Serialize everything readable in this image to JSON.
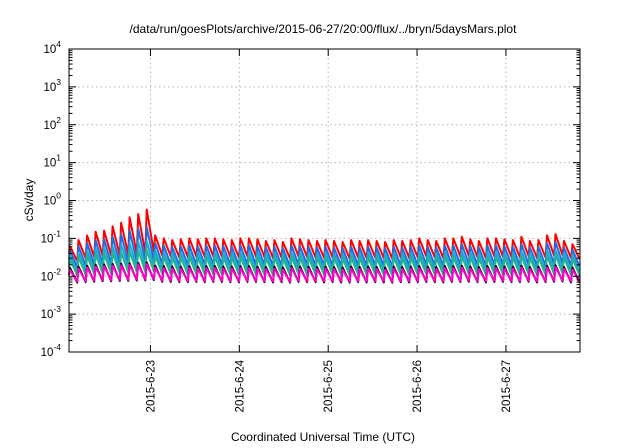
{
  "chart_data": {
    "type": "line",
    "title": "/data/run/goesPlots/archive/2015-06-27/20:00/flux/../bryn/5daysMars.plot",
    "xlabel": "Coordinated Universal Time (UTC)",
    "ylabel": "cSv/day",
    "y_scale": "log",
    "ylim": [
      0.0001,
      10000
    ],
    "y_ticks": [
      {
        "value": 0.0001,
        "base": "10",
        "exp": "-4"
      },
      {
        "value": 0.001,
        "base": "10",
        "exp": "-3"
      },
      {
        "value": 0.01,
        "base": "10",
        "exp": "-2"
      },
      {
        "value": 0.1,
        "base": "10",
        "exp": "-1"
      },
      {
        "value": 1,
        "base": "10",
        "exp": "0"
      },
      {
        "value": 10,
        "base": "10",
        "exp": "1"
      },
      {
        "value": 100,
        "base": "10",
        "exp": "2"
      },
      {
        "value": 1000,
        "base": "10",
        "exp": "3"
      },
      {
        "value": 10000,
        "base": "10",
        "exp": "4"
      }
    ],
    "x_start": "2015-06-22 02:00",
    "x_end": "2015-06-27 20:00",
    "x_ticks": [
      "2015-6-23",
      "2015-6-24",
      "2015-6-25",
      "2015-6-26",
      "2015-6-27"
    ],
    "x_tick_dates": [
      "2015-06-23 00:00",
      "2015-06-24 00:00",
      "2015-06-25 00:00",
      "2015-06-26 00:00",
      "2015-06-27 00:00"
    ],
    "grid": true,
    "series": [
      {
        "color": "#ff0000",
        "peak_values": [
          0.062,
          0.09,
          0.12,
          0.15,
          0.16,
          0.21,
          0.26,
          0.36,
          0.44,
          0.58,
          0.12,
          0.1,
          0.09,
          0.095,
          0.1,
          0.095,
          0.1,
          0.1,
          0.095,
          0.09,
          0.1,
          0.1,
          0.095,
          0.085,
          0.09,
          0.08,
          0.1,
          0.095,
          0.09,
          0.085,
          0.09,
          0.085,
          0.08,
          0.09,
          0.085,
          0.09,
          0.085,
          0.08,
          0.09,
          0.085,
          0.09,
          0.1,
          0.09,
          0.085,
          0.1,
          0.1,
          0.11,
          0.095,
          0.085,
          0.1,
          0.1,
          0.095,
          0.09,
          0.11,
          0.085,
          0.09,
          0.12,
          0.13,
          0.085,
          0.07
        ],
        "trough_values": [
          0.025,
          0.03,
          0.032,
          0.035,
          0.035,
          0.036,
          0.038,
          0.04,
          0.042,
          0.045,
          0.035,
          0.033,
          0.031,
          0.032,
          0.033,
          0.032,
          0.033,
          0.033,
          0.032,
          0.031,
          0.033,
          0.033,
          0.032,
          0.03,
          0.031,
          0.029,
          0.033,
          0.032,
          0.031,
          0.03,
          0.031,
          0.03,
          0.029,
          0.031,
          0.03,
          0.031,
          0.03,
          0.029,
          0.031,
          0.03,
          0.031,
          0.033,
          0.031,
          0.03,
          0.033,
          0.033,
          0.034,
          0.032,
          0.03,
          0.033,
          0.033,
          0.032,
          0.031,
          0.034,
          0.03,
          0.031,
          0.035,
          0.036,
          0.03,
          0.028
        ]
      },
      {
        "color": "#1e6fe6",
        "peak_values": [
          0.048,
          0.062,
          0.075,
          0.09,
          0.095,
          0.11,
          0.13,
          0.16,
          0.18,
          0.2,
          0.075,
          0.065,
          0.06,
          0.062,
          0.065,
          0.062,
          0.065,
          0.065,
          0.062,
          0.06,
          0.065,
          0.065,
          0.062,
          0.057,
          0.06,
          0.055,
          0.065,
          0.062,
          0.06,
          0.057,
          0.06,
          0.057,
          0.055,
          0.06,
          0.057,
          0.06,
          0.057,
          0.055,
          0.06,
          0.057,
          0.06,
          0.065,
          0.06,
          0.057,
          0.065,
          0.065,
          0.07,
          0.062,
          0.057,
          0.065,
          0.065,
          0.062,
          0.06,
          0.07,
          0.057,
          0.06,
          0.075,
          0.08,
          0.057,
          0.05
        ],
        "trough_values": [
          0.017,
          0.019,
          0.02,
          0.021,
          0.021,
          0.022,
          0.023,
          0.024,
          0.025,
          0.026,
          0.021,
          0.02,
          0.019,
          0.02,
          0.02,
          0.02,
          0.02,
          0.02,
          0.02,
          0.019,
          0.02,
          0.02,
          0.02,
          0.019,
          0.019,
          0.018,
          0.02,
          0.02,
          0.019,
          0.019,
          0.019,
          0.019,
          0.018,
          0.019,
          0.019,
          0.019,
          0.019,
          0.018,
          0.019,
          0.019,
          0.019,
          0.02,
          0.019,
          0.019,
          0.02,
          0.02,
          0.021,
          0.02,
          0.019,
          0.02,
          0.02,
          0.02,
          0.019,
          0.021,
          0.019,
          0.019,
          0.021,
          0.022,
          0.019,
          0.018
        ]
      },
      {
        "color": "#1ba9d6",
        "peak_values": [
          0.035,
          0.042,
          0.048,
          0.055,
          0.057,
          0.062,
          0.068,
          0.075,
          0.08,
          0.085,
          0.048,
          0.044,
          0.042,
          0.043,
          0.044,
          0.043,
          0.044,
          0.044,
          0.043,
          0.042,
          0.044,
          0.044,
          0.043,
          0.041,
          0.042,
          0.04,
          0.044,
          0.043,
          0.042,
          0.041,
          0.042,
          0.041,
          0.04,
          0.042,
          0.041,
          0.042,
          0.041,
          0.04,
          0.042,
          0.041,
          0.042,
          0.044,
          0.042,
          0.041,
          0.044,
          0.044,
          0.046,
          0.043,
          0.041,
          0.044,
          0.044,
          0.043,
          0.042,
          0.046,
          0.041,
          0.042,
          0.048,
          0.05,
          0.041,
          0.038
        ],
        "trough_values": [
          0.013,
          0.014,
          0.015,
          0.016,
          0.016,
          0.016,
          0.017,
          0.017,
          0.018,
          0.018,
          0.015,
          0.015,
          0.014,
          0.015,
          0.015,
          0.015,
          0.015,
          0.015,
          0.015,
          0.014,
          0.015,
          0.015,
          0.015,
          0.014,
          0.014,
          0.014,
          0.015,
          0.015,
          0.014,
          0.014,
          0.014,
          0.014,
          0.014,
          0.014,
          0.014,
          0.014,
          0.014,
          0.014,
          0.014,
          0.014,
          0.014,
          0.015,
          0.014,
          0.014,
          0.015,
          0.015,
          0.015,
          0.015,
          0.014,
          0.015,
          0.015,
          0.015,
          0.014,
          0.015,
          0.014,
          0.014,
          0.015,
          0.016,
          0.014,
          0.013
        ]
      },
      {
        "color": "#26b389",
        "peak_values": [
          0.028,
          0.032,
          0.035,
          0.038,
          0.039,
          0.041,
          0.043,
          0.046,
          0.048,
          0.05,
          0.035,
          0.033,
          0.032,
          0.032,
          0.033,
          0.032,
          0.033,
          0.033,
          0.032,
          0.032,
          0.033,
          0.033,
          0.032,
          0.031,
          0.032,
          0.03,
          0.033,
          0.032,
          0.032,
          0.031,
          0.032,
          0.031,
          0.03,
          0.032,
          0.031,
          0.032,
          0.031,
          0.03,
          0.032,
          0.031,
          0.032,
          0.033,
          0.032,
          0.031,
          0.033,
          0.033,
          0.034,
          0.032,
          0.031,
          0.033,
          0.033,
          0.032,
          0.032,
          0.034,
          0.031,
          0.032,
          0.035,
          0.036,
          0.031,
          0.029
        ],
        "trough_values": [
          0.0105,
          0.011,
          0.0115,
          0.012,
          0.012,
          0.0123,
          0.0126,
          0.013,
          0.0133,
          0.0136,
          0.0115,
          0.0112,
          0.011,
          0.011,
          0.0112,
          0.011,
          0.0112,
          0.0112,
          0.011,
          0.011,
          0.0112,
          0.0112,
          0.011,
          0.0108,
          0.011,
          0.0106,
          0.0112,
          0.011,
          0.011,
          0.0108,
          0.011,
          0.0108,
          0.0106,
          0.011,
          0.0108,
          0.011,
          0.0108,
          0.0106,
          0.011,
          0.0108,
          0.011,
          0.0112,
          0.011,
          0.0108,
          0.0112,
          0.0112,
          0.0114,
          0.011,
          0.0108,
          0.0112,
          0.0112,
          0.011,
          0.011,
          0.0114,
          0.0108,
          0.011,
          0.0115,
          0.0118,
          0.0108,
          0.0104
        ]
      },
      {
        "color": "#000000",
        "peak_values": [
          0.0165,
          0.018,
          0.019,
          0.02,
          0.0205,
          0.021,
          0.0215,
          0.022,
          0.0225,
          0.023,
          0.019,
          0.0185,
          0.018,
          0.018,
          0.0185,
          0.018,
          0.0185,
          0.0185,
          0.018,
          0.018,
          0.0185,
          0.0185,
          0.018,
          0.0175,
          0.018,
          0.017,
          0.0185,
          0.018,
          0.018,
          0.0175,
          0.018,
          0.0175,
          0.017,
          0.018,
          0.0175,
          0.018,
          0.0175,
          0.017,
          0.018,
          0.0175,
          0.018,
          0.0185,
          0.018,
          0.0175,
          0.0185,
          0.0185,
          0.019,
          0.018,
          0.0175,
          0.0185,
          0.0185,
          0.018,
          0.018,
          0.019,
          0.0175,
          0.018,
          0.019,
          0.0195,
          0.0175,
          0.017
        ],
        "trough_values": [
          0.0068,
          0.007,
          0.0072,
          0.0074,
          0.0074,
          0.0075,
          0.0076,
          0.0077,
          0.0078,
          0.0079,
          0.0072,
          0.0071,
          0.007,
          0.007,
          0.0071,
          0.007,
          0.0071,
          0.0071,
          0.007,
          0.007,
          0.0071,
          0.0071,
          0.007,
          0.0069,
          0.007,
          0.0068,
          0.0071,
          0.007,
          0.007,
          0.0069,
          0.007,
          0.0069,
          0.0068,
          0.007,
          0.0069,
          0.007,
          0.0069,
          0.0068,
          0.007,
          0.0069,
          0.007,
          0.0071,
          0.007,
          0.0069,
          0.0071,
          0.0071,
          0.0072,
          0.007,
          0.0069,
          0.0071,
          0.0071,
          0.007,
          0.007,
          0.0072,
          0.0069,
          0.007,
          0.0072,
          0.0073,
          0.0069,
          0.0067
        ]
      },
      {
        "color": "#ff00cc",
        "peak_values": [
          0.0145,
          0.016,
          0.017,
          0.018,
          0.0185,
          0.019,
          0.0195,
          0.02,
          0.0205,
          0.021,
          0.017,
          0.0165,
          0.016,
          0.016,
          0.0165,
          0.016,
          0.0165,
          0.0165,
          0.016,
          0.016,
          0.0165,
          0.0165,
          0.016,
          0.0155,
          0.016,
          0.015,
          0.0165,
          0.016,
          0.016,
          0.0155,
          0.016,
          0.0155,
          0.015,
          0.016,
          0.0155,
          0.016,
          0.0155,
          0.015,
          0.016,
          0.0155,
          0.016,
          0.0165,
          0.016,
          0.0155,
          0.0165,
          0.0165,
          0.017,
          0.016,
          0.0155,
          0.0165,
          0.0165,
          0.016,
          0.016,
          0.017,
          0.0155,
          0.016,
          0.017,
          0.0175,
          0.0155,
          0.015
        ],
        "trough_values": [
          0.0072,
          0.0074,
          0.0076,
          0.0078,
          0.0078,
          0.0079,
          0.008,
          0.0081,
          0.0082,
          0.0083,
          0.0076,
          0.0075,
          0.0074,
          0.0074,
          0.0075,
          0.0074,
          0.0075,
          0.0075,
          0.0074,
          0.0074,
          0.0075,
          0.0075,
          0.0074,
          0.0073,
          0.0074,
          0.0072,
          0.0075,
          0.0074,
          0.0074,
          0.0073,
          0.0074,
          0.0073,
          0.0072,
          0.0074,
          0.0073,
          0.0074,
          0.0073,
          0.0072,
          0.0074,
          0.0073,
          0.0074,
          0.0075,
          0.0074,
          0.0073,
          0.0075,
          0.0075,
          0.0076,
          0.0074,
          0.0073,
          0.0075,
          0.0075,
          0.0074,
          0.0074,
          0.0076,
          0.0073,
          0.0074,
          0.0076,
          0.0077,
          0.0073,
          0.0071
        ]
      }
    ]
  }
}
